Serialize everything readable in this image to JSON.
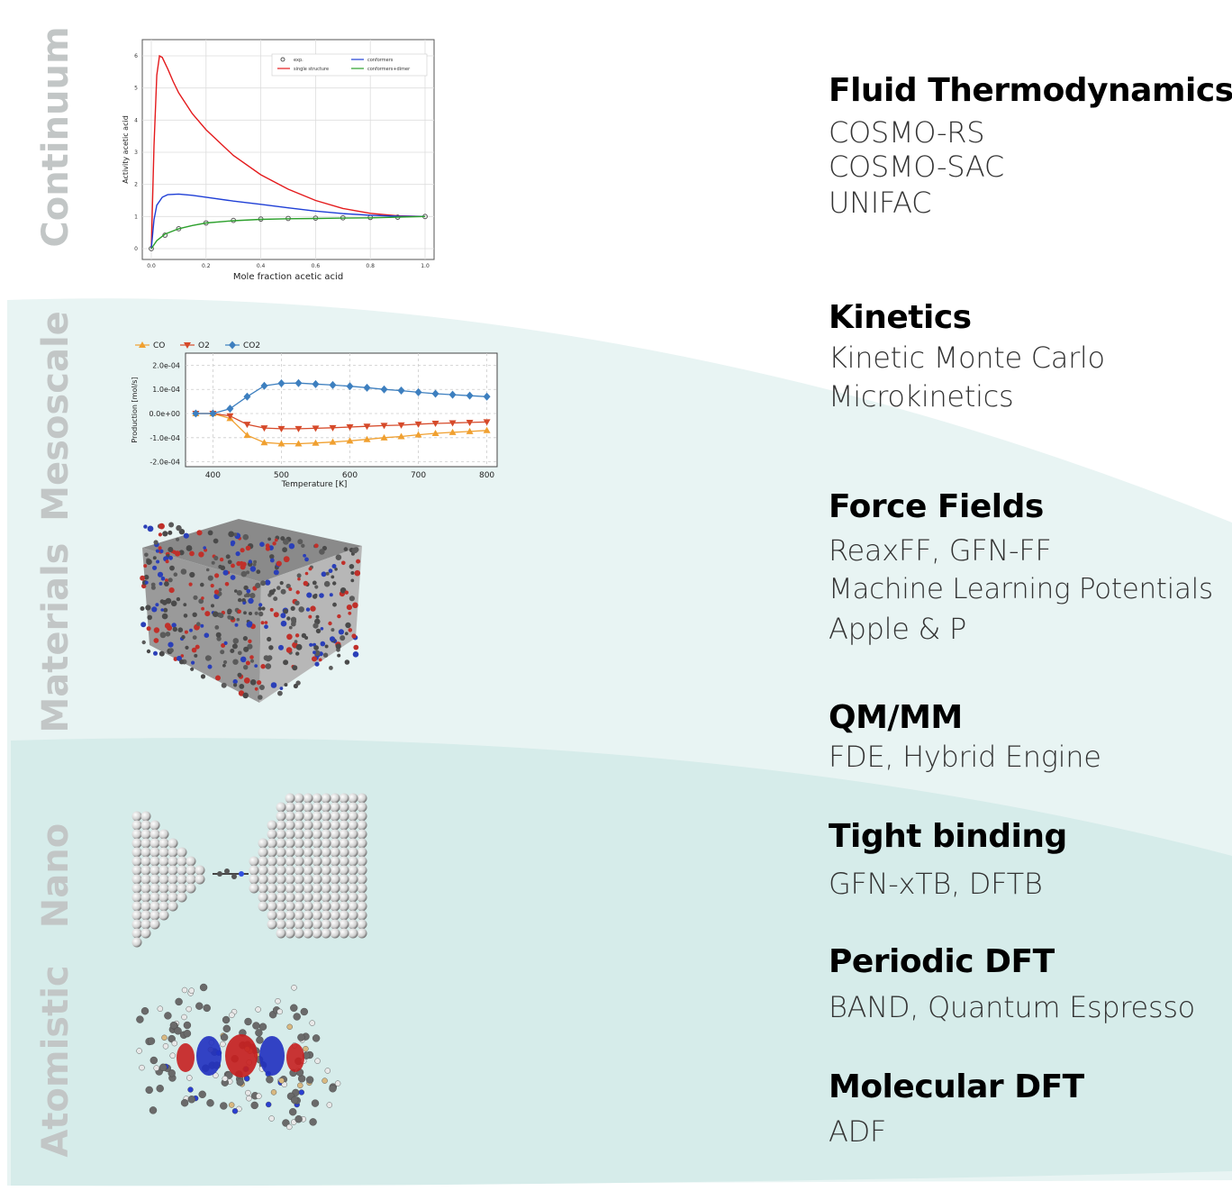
{
  "scales": [
    "Continuum",
    "Mesoscale",
    "Materials",
    "Nano",
    "Atomistic"
  ],
  "sections": [
    {
      "title": "Fluid Thermodynamics",
      "items": [
        "COSMO-RS",
        "COSMO-SAC",
        "UNIFAC"
      ]
    },
    {
      "title": "Kinetics",
      "items": [
        "Kinetic Monte Carlo",
        "Microkinetics"
      ]
    },
    {
      "title": "Force Fields",
      "items": [
        "ReaxFF, GFN-FF",
        "Machine Learning Potentials",
        "Apple & P"
      ]
    },
    {
      "title": "QM/MM",
      "items": [
        "FDE, Hybrid Engine"
      ]
    },
    {
      "title": "Tight binding",
      "items": [
        "GFN-xTB, DFTB"
      ]
    },
    {
      "title": "Periodic DFT",
      "items": [
        "BAND, Quantum Espresso"
      ]
    },
    {
      "title": "Molecular DFT",
      "items": [
        "ADF"
      ]
    }
  ],
  "colors": {
    "band_light": "#e8f4f3",
    "band_dark": "#d6ecea",
    "label_gray": "#c2c6c6"
  },
  "chart_data": [
    {
      "type": "line",
      "xlabel": "Mole fraction acetic acid",
      "ylabel": "Activity acetic acid",
      "xlim": [
        0,
        1
      ],
      "ylim": [
        0,
        6
      ],
      "xticks": [
        "0.0",
        "0.2",
        "0.4",
        "0.6",
        "0.8",
        "1.0"
      ],
      "yticks": [
        "0",
        "1",
        "2",
        "3",
        "4",
        "5",
        "6"
      ],
      "grid": true,
      "legend": "top-right",
      "series": [
        {
          "name": "exp.",
          "style": "circles",
          "color": "#555555",
          "x": [
            0.0,
            0.05,
            0.1,
            0.2,
            0.3,
            0.4,
            0.5,
            0.6,
            0.7,
            0.8,
            0.9,
            1.0
          ],
          "y": [
            0.0,
            0.42,
            0.62,
            0.8,
            0.88,
            0.92,
            0.94,
            0.95,
            0.96,
            0.97,
            0.98,
            1.0
          ]
        },
        {
          "name": "single structure",
          "color": "#e41a1c",
          "x": [
            0.0,
            0.01,
            0.02,
            0.03,
            0.04,
            0.06,
            0.08,
            0.1,
            0.15,
            0.2,
            0.3,
            0.4,
            0.5,
            0.6,
            0.7,
            0.8,
            0.9,
            1.0
          ],
          "y": [
            0.0,
            3.2,
            5.4,
            6.0,
            5.95,
            5.6,
            5.2,
            4.85,
            4.2,
            3.7,
            2.9,
            2.3,
            1.85,
            1.5,
            1.25,
            1.1,
            1.02,
            1.0
          ]
        },
        {
          "name": "conformers",
          "color": "#1f3fd6",
          "x": [
            0.0,
            0.01,
            0.02,
            0.04,
            0.06,
            0.1,
            0.15,
            0.2,
            0.3,
            0.4,
            0.5,
            0.6,
            0.7,
            0.8,
            0.9,
            1.0
          ],
          "y": [
            0.0,
            0.9,
            1.35,
            1.6,
            1.68,
            1.7,
            1.66,
            1.6,
            1.48,
            1.38,
            1.27,
            1.17,
            1.09,
            1.04,
            1.01,
            1.0
          ]
        },
        {
          "name": "conformers+dimer",
          "color": "#2ca02c",
          "x": [
            0.0,
            0.02,
            0.05,
            0.1,
            0.15,
            0.2,
            0.3,
            0.4,
            0.5,
            0.6,
            0.7,
            0.8,
            0.9,
            1.0
          ],
          "y": [
            0.0,
            0.25,
            0.45,
            0.62,
            0.72,
            0.8,
            0.87,
            0.91,
            0.93,
            0.94,
            0.95,
            0.96,
            0.98,
            1.0
          ]
        }
      ]
    },
    {
      "type": "line",
      "xlabel": "Temperature [K]",
      "ylabel": "Production [mol/s]",
      "xlim": [
        360,
        815
      ],
      "ylim": [
        -0.00022,
        0.00025
      ],
      "xticks": [
        "400",
        "500",
        "600",
        "700",
        "800"
      ],
      "yticks": [
        "2.0e-04",
        "1.0e-04",
        "0.0e+00",
        "-1.0e-04",
        "-2.0e-04"
      ],
      "grid": true,
      "legend": "top-left",
      "series": [
        {
          "name": "CO",
          "marker": "triangle-up",
          "color": "#f0a030",
          "x": [
            375,
            400,
            425,
            450,
            475,
            500,
            525,
            550,
            575,
            600,
            625,
            650,
            675,
            700,
            725,
            750,
            775,
            800
          ],
          "y": [
            0,
            0,
            -2e-05,
            -9e-05,
            -0.00012,
            -0.000125,
            -0.000125,
            -0.000122,
            -0.000118,
            -0.000113,
            -0.000107,
            -0.0001,
            -9.5e-05,
            -8.8e-05,
            -8.2e-05,
            -7.8e-05,
            -7.4e-05,
            -7e-05
          ]
        },
        {
          "name": "O2",
          "marker": "triangle-down",
          "color": "#d64a2a",
          "x": [
            375,
            400,
            425,
            450,
            475,
            500,
            525,
            550,
            575,
            600,
            625,
            650,
            675,
            700,
            725,
            750,
            775,
            800
          ],
          "y": [
            0,
            0,
            -1e-05,
            -4.5e-05,
            -6e-05,
            -6.3e-05,
            -6.3e-05,
            -6.1e-05,
            -5.9e-05,
            -5.6e-05,
            -5.3e-05,
            -5e-05,
            -4.8e-05,
            -4.4e-05,
            -4.1e-05,
            -3.9e-05,
            -3.7e-05,
            -3.5e-05
          ]
        },
        {
          "name": "CO2",
          "marker": "diamond",
          "color": "#3d7fbf",
          "x": [
            375,
            400,
            425,
            450,
            475,
            500,
            525,
            550,
            575,
            600,
            625,
            650,
            675,
            700,
            725,
            750,
            775,
            800
          ],
          "y": [
            0,
            0,
            2e-05,
            7e-05,
            0.000115,
            0.000125,
            0.000126,
            0.000122,
            0.000118,
            0.000113,
            0.000107,
            0.0001,
            9.5e-05,
            8.8e-05,
            8.2e-05,
            7.8e-05,
            7.4e-05,
            7e-05
          ]
        }
      ]
    }
  ]
}
